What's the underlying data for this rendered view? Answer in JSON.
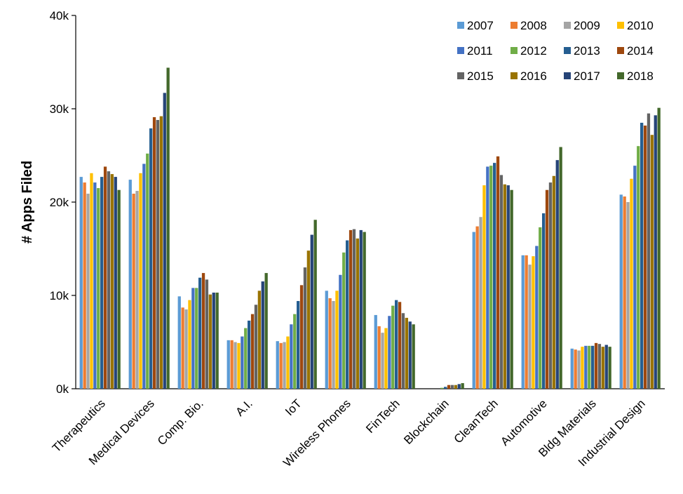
{
  "chart_data": {
    "type": "bar",
    "xlabel": "",
    "ylabel": "# Apps Filed",
    "ylim": [
      0,
      40000
    ],
    "yticks": [
      {
        "value": 0,
        "label": "0k"
      },
      {
        "value": 10000,
        "label": "10k"
      },
      {
        "value": 20000,
        "label": "20k"
      },
      {
        "value": 30000,
        "label": "30k"
      },
      {
        "value": 40000,
        "label": "40k"
      }
    ],
    "grid": false,
    "legend_position": "top-right",
    "categories": [
      "Therapeutics",
      "Medical Devices",
      "Comp. Bio.",
      "A.I.",
      "IoT",
      "Wireless Phones",
      "FinTech",
      "Blockchain",
      "CleanTech",
      "Automotive",
      "Bldg Materials",
      "Industrial Design"
    ],
    "series": [
      {
        "name": "2007",
        "color": "#5b9bd5",
        "values": [
          22700,
          22400,
          9900,
          5200,
          5100,
          10500,
          7900,
          0,
          16800,
          14300,
          4300,
          20800
        ]
      },
      {
        "name": "2008",
        "color": "#ed7d31",
        "values": [
          22100,
          20900,
          8700,
          5200,
          4900,
          9700,
          6700,
          0,
          17400,
          14300,
          4200,
          20600
        ]
      },
      {
        "name": "2009",
        "color": "#a5a5a5",
        "values": [
          20900,
          21200,
          8500,
          5000,
          5000,
          9400,
          6000,
          0,
          18400,
          13300,
          4100,
          20000
        ]
      },
      {
        "name": "2010",
        "color": "#ffc000",
        "values": [
          23100,
          23100,
          9500,
          4900,
          5600,
          10500,
          6500,
          0,
          21800,
          14200,
          4500,
          22500
        ]
      },
      {
        "name": "2011",
        "color": "#4472c4",
        "values": [
          22100,
          24100,
          10800,
          5600,
          6900,
          12200,
          7800,
          0,
          23800,
          15300,
          4600,
          23900
        ]
      },
      {
        "name": "2012",
        "color": "#70ad47",
        "values": [
          21500,
          25200,
          10800,
          6500,
          8000,
          14600,
          8900,
          100,
          23900,
          17300,
          4600,
          26000
        ]
      },
      {
        "name": "2013",
        "color": "#255e91",
        "values": [
          22700,
          27900,
          11900,
          7300,
          9400,
          15900,
          9500,
          200,
          24200,
          18800,
          4600,
          28500
        ]
      },
      {
        "name": "2014",
        "color": "#9e480e",
        "values": [
          23800,
          29100,
          12400,
          8000,
          11100,
          17000,
          9300,
          400,
          24900,
          21300,
          4900,
          28200
        ]
      },
      {
        "name": "2015",
        "color": "#636363",
        "values": [
          23300,
          28800,
          11700,
          9000,
          13000,
          17100,
          8100,
          400,
          22900,
          22100,
          4800,
          29500
        ]
      },
      {
        "name": "2016",
        "color": "#997300",
        "values": [
          23000,
          29200,
          10100,
          10500,
          14800,
          16100,
          7600,
          400,
          21900,
          22800,
          4500,
          27200
        ]
      },
      {
        "name": "2017",
        "color": "#264478",
        "values": [
          22700,
          31700,
          10300,
          11500,
          16500,
          17000,
          7200,
          500,
          21800,
          24500,
          4700,
          29300
        ]
      },
      {
        "name": "2018",
        "color": "#43682b",
        "values": [
          21300,
          34400,
          10300,
          12400,
          18100,
          16800,
          6900,
          600,
          21300,
          25900,
          4500,
          30100
        ]
      }
    ]
  }
}
